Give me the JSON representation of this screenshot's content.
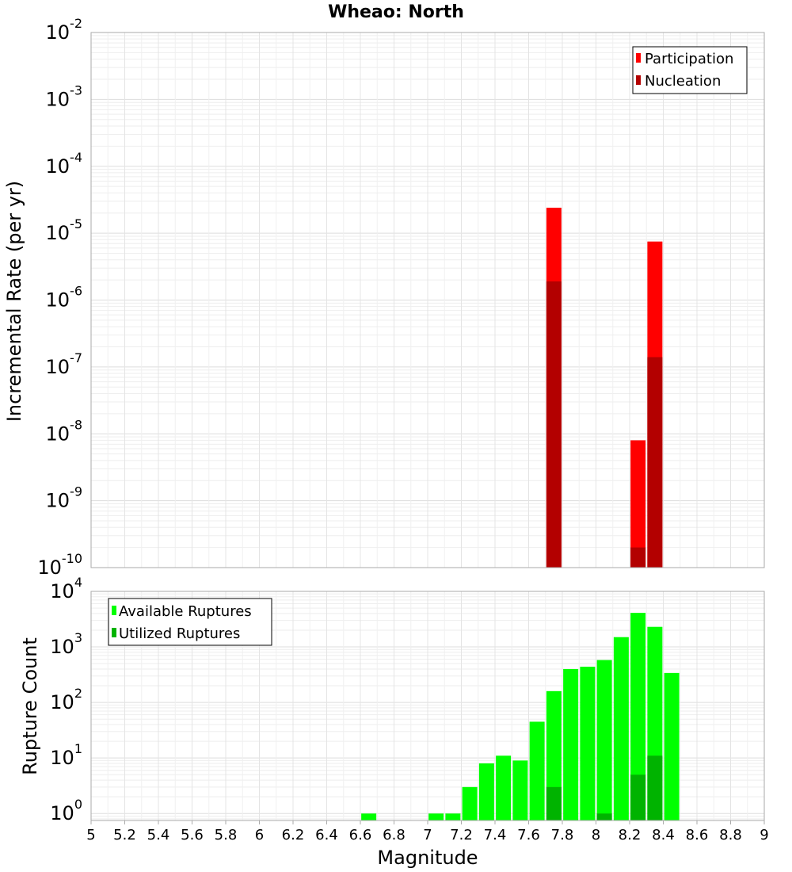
{
  "chart_data": [
    {
      "type": "bar",
      "title": "Wheao: North",
      "ylabel": "Incremental Rate (per yr)",
      "xlabel": "",
      "xlim": [
        5,
        9
      ],
      "ylim": [
        1e-10,
        0.01
      ],
      "yscale": "log",
      "grid": true,
      "legend_position": "top-right",
      "bar_overlay": true,
      "yticks": [
        {
          "base": "10",
          "exp": "-10"
        },
        {
          "base": "10",
          "exp": "-9"
        },
        {
          "base": "10",
          "exp": "-8"
        },
        {
          "base": "10",
          "exp": "-7"
        },
        {
          "base": "10",
          "exp": "-6"
        },
        {
          "base": "10",
          "exp": "-5"
        },
        {
          "base": "10",
          "exp": "-4"
        },
        {
          "base": "10",
          "exp": "-3"
        },
        {
          "base": "10",
          "exp": "-2"
        }
      ],
      "series": [
        {
          "name": "Participation",
          "color": "#ff0000",
          "x": [
            7.75,
            8.25,
            8.35
          ],
          "values": [
            2.4e-05,
            8e-09,
            7.5e-06
          ]
        },
        {
          "name": "Nucleation",
          "color": "#b30000",
          "x": [
            7.75,
            8.25,
            8.35
          ],
          "values": [
            1.9e-06,
            2e-10,
            1.4e-07
          ]
        }
      ]
    },
    {
      "type": "bar",
      "title": "",
      "ylabel": "Rupture Count",
      "xlabel": "Magnitude",
      "xlim": [
        5,
        9
      ],
      "ylim": [
        0.75,
        10000
      ],
      "yscale": "log",
      "grid": true,
      "legend_position": "top-left",
      "bar_overlay": true,
      "xticks": [
        "5",
        "5.2",
        "5.4",
        "5.6",
        "5.8",
        "6",
        "6.2",
        "6.4",
        "6.6",
        "6.8",
        "7",
        "7.2",
        "7.4",
        "7.6",
        "7.8",
        "8",
        "8.2",
        "8.4",
        "8.6",
        "8.8",
        "9"
      ],
      "yticks": [
        {
          "base": "10",
          "exp": "0"
        },
        {
          "base": "10",
          "exp": "1"
        },
        {
          "base": "10",
          "exp": "2"
        },
        {
          "base": "10",
          "exp": "3"
        },
        {
          "base": "10",
          "exp": "4"
        }
      ],
      "series": [
        {
          "name": "Available Ruptures",
          "color": "#00ff00",
          "x": [
            6.65,
            7.05,
            7.15,
            7.25,
            7.35,
            7.45,
            7.55,
            7.65,
            7.75,
            7.85,
            7.95,
            8.05,
            8.15,
            8.25,
            8.35,
            8.45
          ],
          "values": [
            1,
            1,
            1,
            3,
            8,
            11,
            9,
            45,
            160,
            400,
            440,
            580,
            1500,
            4100,
            2300,
            340
          ]
        },
        {
          "name": "Utilized Ruptures",
          "color": "#00b300",
          "x": [
            7.75,
            8.05,
            8.25,
            8.35
          ],
          "values": [
            3,
            1,
            5,
            11
          ]
        }
      ]
    }
  ]
}
